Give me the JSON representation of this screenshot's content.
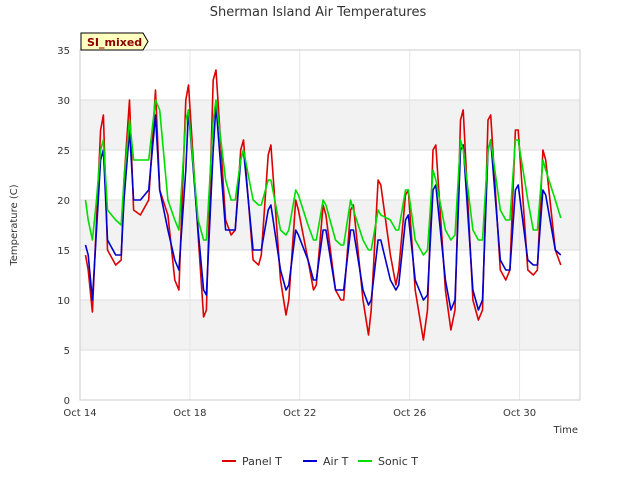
{
  "chart_data": {
    "type": "line",
    "title": "Sherman Island Air Temperatures",
    "xlabel": "Time",
    "ylabel": "Temperature (C)",
    "badge": "SI_mixed",
    "xlim": [
      0,
      18.2
    ],
    "ylim": [
      0,
      35
    ],
    "x_ticks": [
      {
        "label": "Oct 14",
        "day": 0
      },
      {
        "label": "Oct 18",
        "day": 4
      },
      {
        "label": "Oct 22",
        "day": 8
      },
      {
        "label": "Oct 26",
        "day": 12
      },
      {
        "label": "Oct 30",
        "day": 16
      }
    ],
    "y_ticks": [
      0,
      5,
      10,
      15,
      20,
      25,
      30,
      35
    ],
    "grid": true,
    "legend_position": "bottom",
    "series": [
      {
        "name": "Panel T",
        "color": "#dd0000",
        "x": [
          0.2,
          0.3,
          0.45,
          0.6,
          0.75,
          0.85,
          1.0,
          1.3,
          1.5,
          1.6,
          1.8,
          1.95,
          2.2,
          2.5,
          2.75,
          2.9,
          3.2,
          3.45,
          3.6,
          3.85,
          3.95,
          4.3,
          4.5,
          4.6,
          4.85,
          4.95,
          5.3,
          5.5,
          5.65,
          5.85,
          5.95,
          6.3,
          6.5,
          6.6,
          6.85,
          6.95,
          7.3,
          7.5,
          7.6,
          7.85,
          7.95,
          8.3,
          8.5,
          8.6,
          8.85,
          8.95,
          9.3,
          9.5,
          9.6,
          9.85,
          9.95,
          10.3,
          10.5,
          10.6,
          10.85,
          10.95,
          11.3,
          11.5,
          11.6,
          11.85,
          11.95,
          12.2,
          12.5,
          12.65,
          12.85,
          12.95,
          13.3,
          13.5,
          13.65,
          13.85,
          13.95,
          14.3,
          14.5,
          14.65,
          14.85,
          14.95,
          15.3,
          15.5,
          15.65,
          15.85,
          15.95,
          16.3,
          16.5,
          16.65,
          16.85,
          16.95,
          17.3,
          17.5
        ],
        "y": [
          14.5,
          13.0,
          8.8,
          18,
          27,
          28.5,
          15,
          13.5,
          14,
          22,
          30,
          19,
          18.5,
          20,
          31,
          21,
          18.5,
          12,
          11,
          30,
          31.5,
          16.5,
          8.3,
          9,
          32,
          33,
          18,
          16.5,
          17,
          25,
          26,
          14,
          13.5,
          14.5,
          24.5,
          25.5,
          12,
          8.5,
          10,
          20,
          19,
          14,
          11,
          11.5,
          19.5,
          18.5,
          11,
          10,
          10,
          19,
          19.5,
          10,
          6.5,
          9,
          22,
          21.5,
          14.5,
          11.5,
          13,
          20.5,
          21,
          11,
          6,
          9,
          25,
          25.5,
          11,
          7,
          9,
          28,
          29,
          10,
          8,
          9,
          28,
          28.5,
          13,
          12,
          13,
          27,
          27,
          13,
          12.5,
          13,
          25,
          24,
          15,
          13.5
        ]
      },
      {
        "name": "Air T",
        "color": "#0000cc",
        "x": [
          0.2,
          0.3,
          0.45,
          0.6,
          0.75,
          0.85,
          1.0,
          1.3,
          1.5,
          1.6,
          1.8,
          1.95,
          2.2,
          2.5,
          2.75,
          2.9,
          3.2,
          3.45,
          3.6,
          3.85,
          3.95,
          4.3,
          4.5,
          4.6,
          4.85,
          4.95,
          5.3,
          5.5,
          5.65,
          5.85,
          5.95,
          6.3,
          6.5,
          6.6,
          6.85,
          6.95,
          7.3,
          7.5,
          7.6,
          7.85,
          7.95,
          8.3,
          8.5,
          8.6,
          8.85,
          8.95,
          9.3,
          9.5,
          9.6,
          9.85,
          9.95,
          10.3,
          10.5,
          10.6,
          10.85,
          10.95,
          11.3,
          11.5,
          11.6,
          11.85,
          11.95,
          12.2,
          12.5,
          12.65,
          12.85,
          12.95,
          13.3,
          13.5,
          13.65,
          13.85,
          13.95,
          14.3,
          14.5,
          14.65,
          14.85,
          14.95,
          15.3,
          15.5,
          15.65,
          15.85,
          15.95,
          16.3,
          16.5,
          16.65,
          16.85,
          16.95,
          17.3,
          17.5
        ],
        "y": [
          15.5,
          14.5,
          10,
          17,
          24,
          25,
          16,
          14.5,
          14.5,
          20,
          27,
          20,
          20,
          21,
          28.5,
          21,
          17,
          14,
          13,
          23,
          29,
          17,
          11,
          10.5,
          25,
          29.5,
          17,
          17,
          17,
          24,
          25,
          15,
          15,
          15,
          19,
          19.5,
          13,
          11,
          11.5,
          17,
          16.5,
          14,
          12,
          12,
          17,
          17,
          11,
          11,
          11,
          17,
          17,
          11,
          9.5,
          10,
          16,
          16,
          12,
          11,
          11.5,
          18,
          18.5,
          12,
          10,
          10.5,
          21,
          21.5,
          12,
          9,
          10,
          25,
          25.5,
          11,
          9,
          10,
          25,
          26,
          14,
          13,
          13,
          21,
          21.5,
          14,
          13.5,
          13.5,
          21,
          20.5,
          15,
          14.5
        ]
      },
      {
        "name": "Sonic T",
        "color": "#00dd00",
        "x": [
          0.2,
          0.3,
          0.45,
          0.6,
          0.75,
          0.85,
          1.0,
          1.3,
          1.5,
          1.6,
          1.8,
          1.95,
          2.2,
          2.5,
          2.75,
          2.9,
          3.2,
          3.45,
          3.6,
          3.85,
          3.95,
          4.3,
          4.5,
          4.6,
          4.85,
          4.95,
          5.3,
          5.5,
          5.65,
          5.85,
          5.95,
          6.3,
          6.5,
          6.6,
          6.85,
          6.95,
          7.3,
          7.5,
          7.6,
          7.85,
          7.95,
          8.3,
          8.5,
          8.6,
          8.85,
          8.95,
          9.3,
          9.5,
          9.6,
          9.85,
          9.95,
          10.3,
          10.5,
          10.6,
          10.85,
          10.95,
          11.3,
          11.5,
          11.6,
          11.85,
          11.95,
          12.2,
          12.5,
          12.65,
          12.85,
          12.95,
          13.3,
          13.5,
          13.65,
          13.85,
          13.95,
          14.3,
          14.5,
          14.65,
          14.85,
          14.95,
          15.3,
          15.5,
          15.65,
          15.85,
          15.95,
          16.3,
          16.5,
          16.65,
          16.85,
          16.95,
          17.3,
          17.5
        ],
        "y": [
          20,
          18,
          16,
          20,
          25,
          26,
          19,
          18,
          17.5,
          22,
          28,
          24,
          24,
          24,
          30,
          29,
          20,
          18,
          17,
          28,
          29,
          18,
          16,
          16,
          28,
          30,
          22,
          20,
          20,
          24,
          25,
          20,
          19.5,
          19.5,
          22,
          22,
          17,
          16.5,
          17,
          21,
          20.5,
          17.5,
          16,
          16,
          20,
          19.5,
          16,
          15.5,
          15.5,
          20,
          19,
          16,
          15,
          15,
          19,
          18.5,
          18,
          17,
          17,
          21,
          21,
          16,
          14.5,
          15,
          23,
          22,
          17,
          16,
          16.5,
          26,
          25,
          17,
          16,
          16,
          25,
          26,
          19,
          18,
          18,
          26,
          26,
          20,
          17,
          17,
          24,
          23,
          20,
          18.2
        ]
      }
    ]
  }
}
